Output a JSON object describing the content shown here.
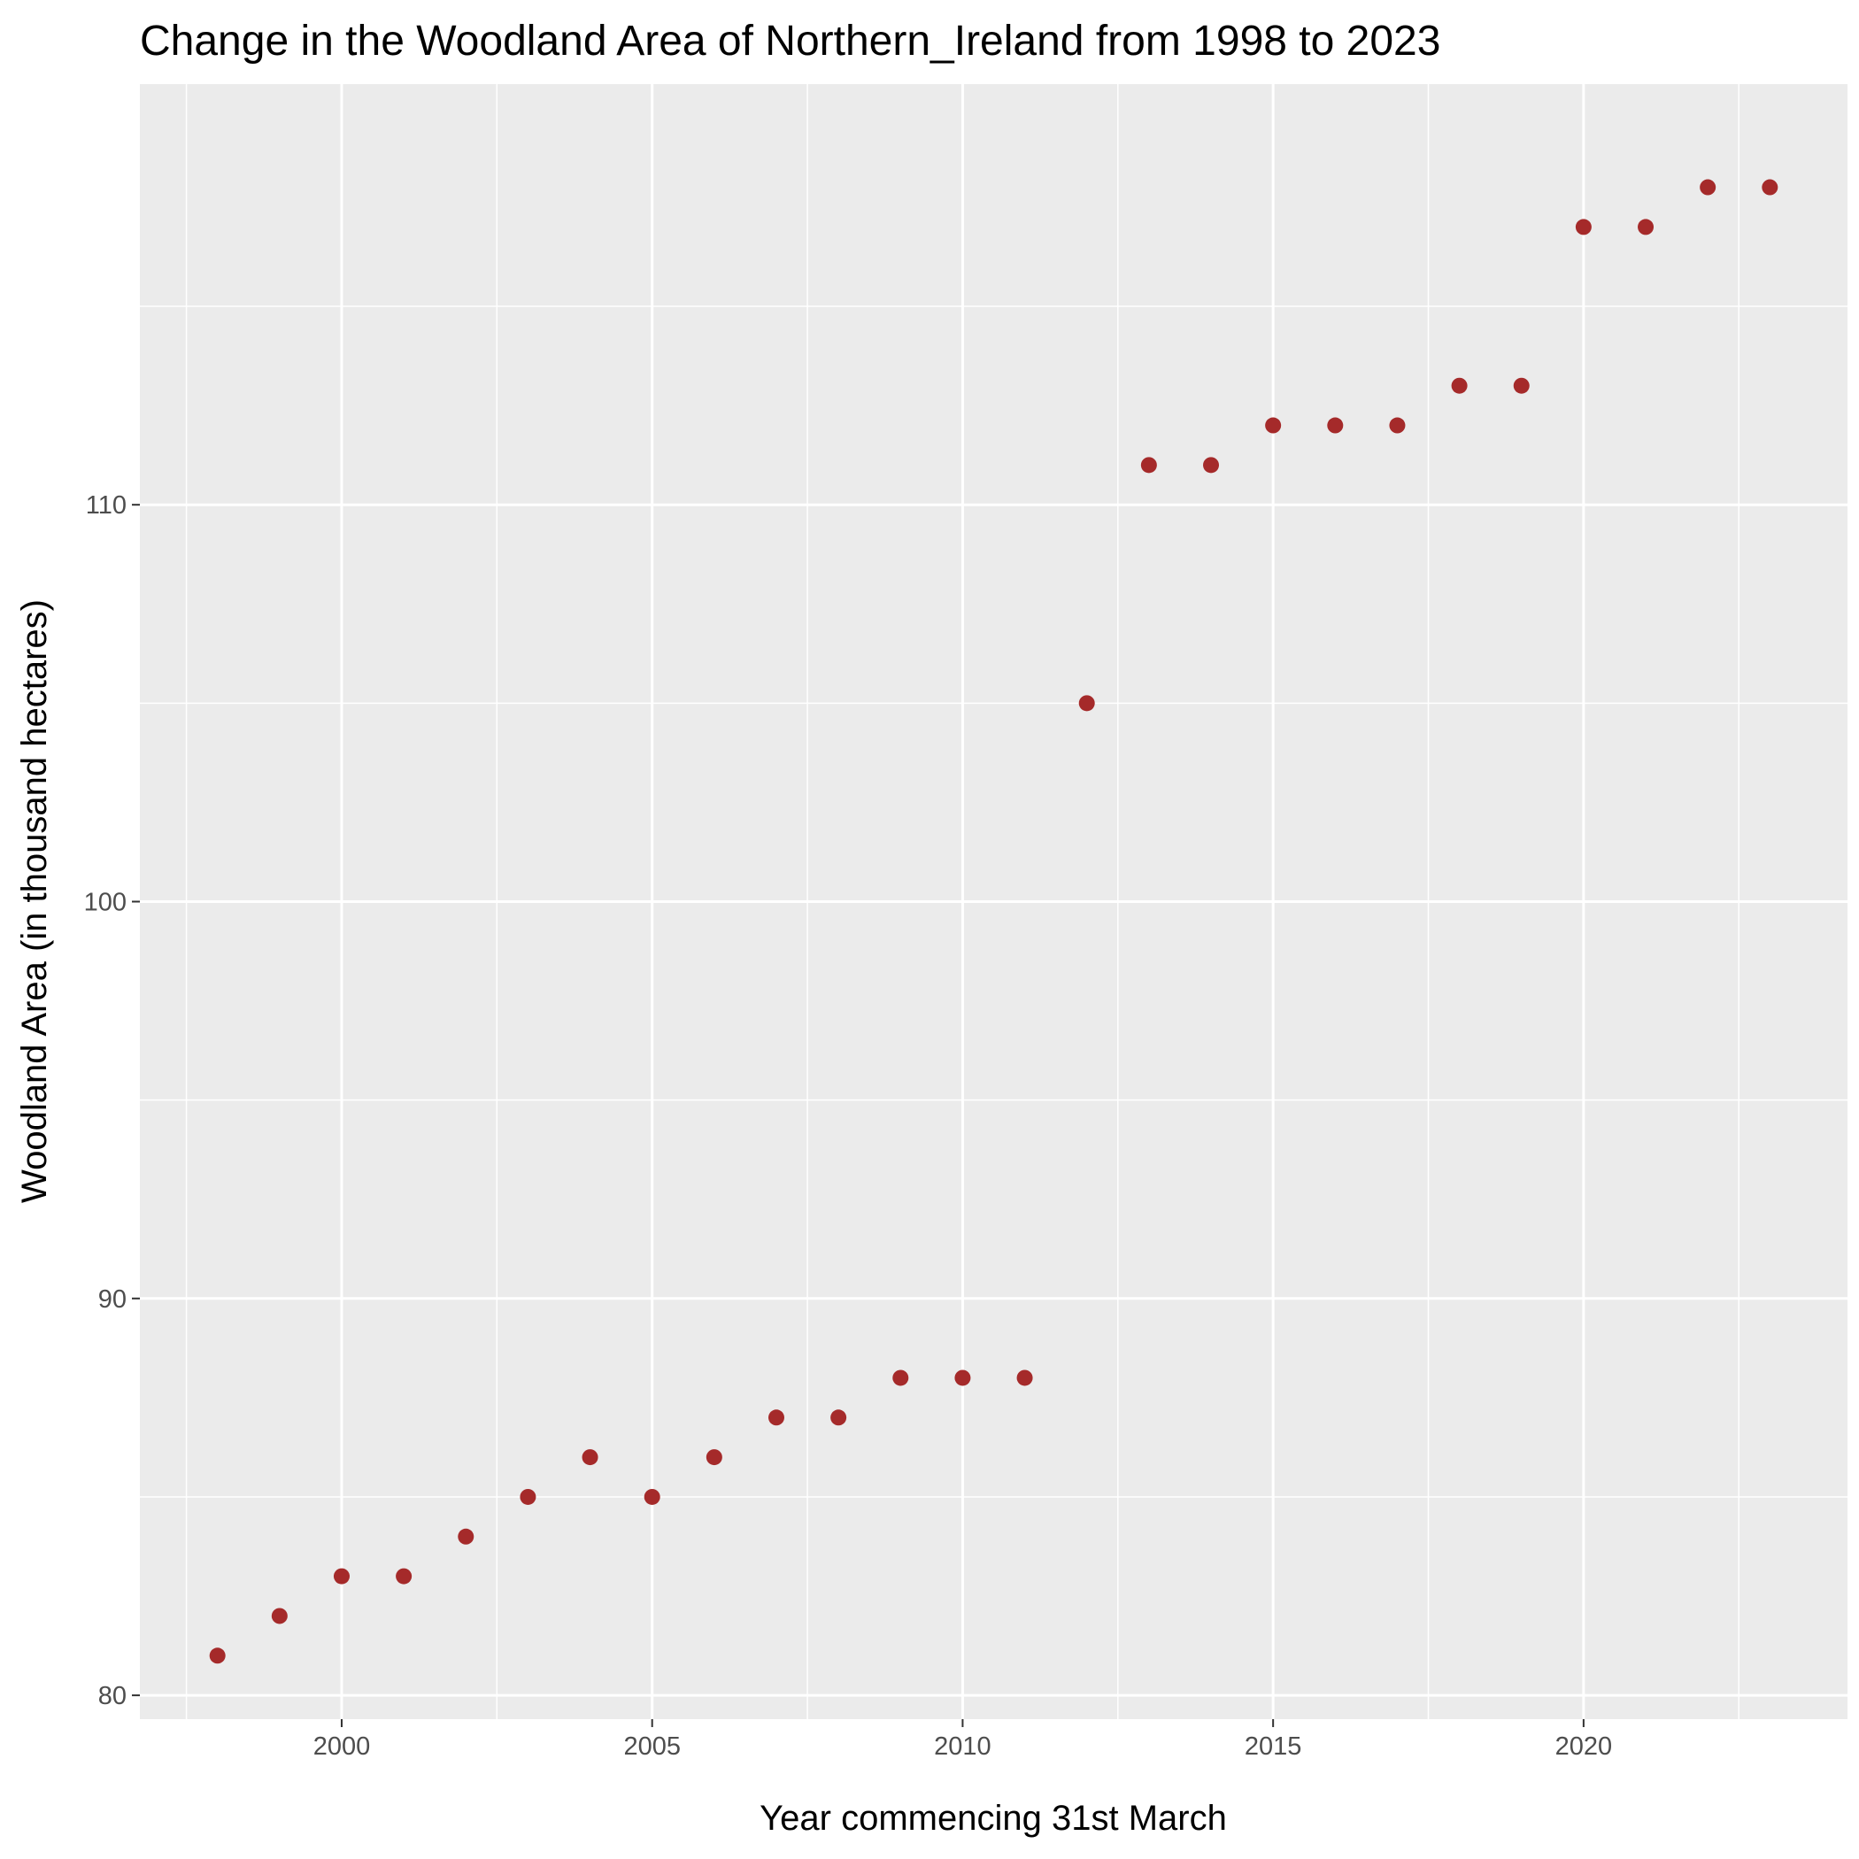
{
  "chart_data": {
    "type": "scatter",
    "title": "Change in the Woodland Area of Northern_Ireland from 1998 to 2023",
    "xlabel": "Year commencing 31st March",
    "ylabel": "Woodland Area (in thousand hectares)",
    "xlim": [
      1996.75,
      2024.25
    ],
    "ylim": [
      79.4,
      120.6
    ],
    "x_ticks": [
      2000,
      2005,
      2010,
      2015,
      2020
    ],
    "y_ticks": [
      80,
      90,
      100,
      110
    ],
    "grid": true,
    "legend": "none",
    "series": [
      {
        "x": [
          1998,
          1999,
          2000,
          2001,
          2002,
          2003,
          2004,
          2005,
          2006,
          2007,
          2008,
          2009,
          2010,
          2011,
          2012,
          2013,
          2014,
          2015,
          2016,
          2017,
          2018,
          2019,
          2020,
          2021,
          2022,
          2023
        ],
        "y": [
          81,
          82,
          83,
          83,
          84,
          85,
          86,
          85,
          86,
          87,
          87,
          88,
          88,
          88,
          105,
          111,
          111,
          112,
          112,
          112,
          113,
          113,
          117,
          117,
          118,
          118
        ]
      }
    ],
    "colors": {
      "point": "#a52a2a",
      "panel": "#ebebeb",
      "grid": "#ffffff"
    }
  }
}
